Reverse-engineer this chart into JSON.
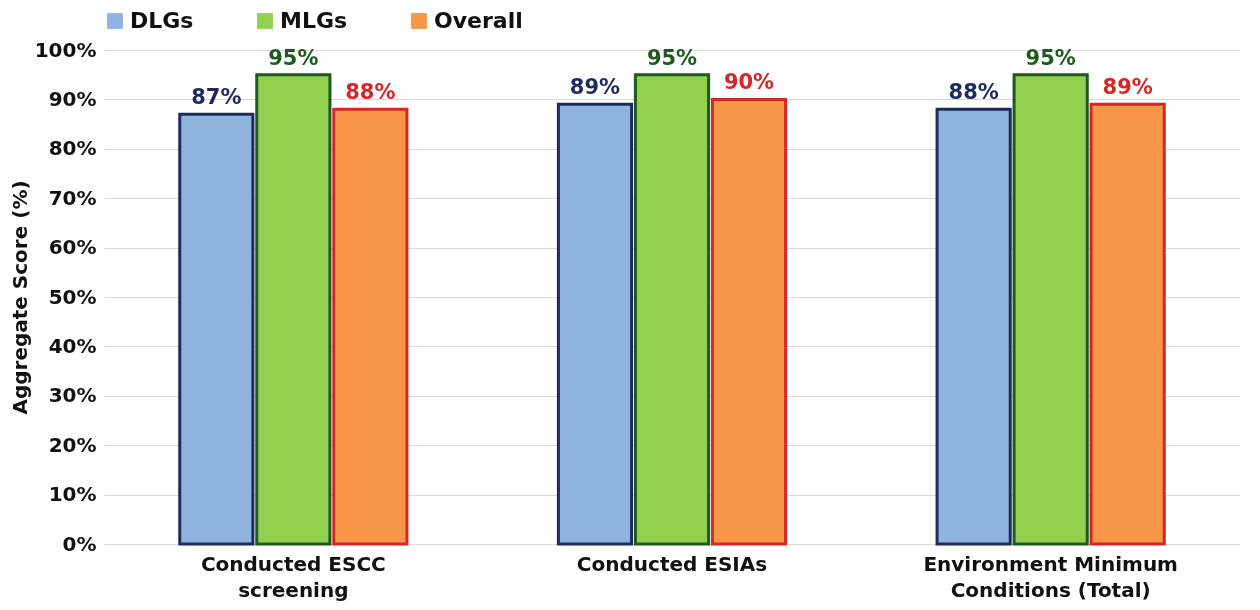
{
  "chart_data": {
    "type": "bar",
    "ylabel": "Aggregate Score (%)",
    "categories": [
      "Conducted ESCC screening",
      "Conducted ESIAs",
      "Environment Minimum Conditions (Total)"
    ],
    "series": [
      {
        "name": "DLGs",
        "color": "#8eb4de",
        "values": [
          87,
          89,
          88
        ],
        "value_labels": [
          "87%",
          "89%",
          "88%"
        ]
      },
      {
        "name": "MLGs",
        "color": "#92d050",
        "values": [
          95,
          95,
          95
        ],
        "value_labels": [
          "95%",
          "95%",
          "95%"
        ]
      },
      {
        "name": "Overall",
        "color": "#f79646",
        "values": [
          88,
          90,
          89
        ],
        "value_labels": [
          "88%",
          "90%",
          "89%"
        ]
      }
    ],
    "ylim": [
      0,
      100
    ],
    "yticks": [
      {
        "value": 0,
        "label": "0%"
      },
      {
        "value": 10,
        "label": "10%"
      },
      {
        "value": 20,
        "label": "20%"
      },
      {
        "value": 30,
        "label": "30%"
      },
      {
        "value": 40,
        "label": "40%"
      },
      {
        "value": 50,
        "label": "50%"
      },
      {
        "value": 60,
        "label": "60%"
      },
      {
        "value": 70,
        "label": "70%"
      },
      {
        "value": 80,
        "label": "80%"
      },
      {
        "value": 90,
        "label": "90%"
      },
      {
        "value": 100,
        "label": "100%"
      }
    ],
    "grid": "y",
    "legend": "top"
  }
}
